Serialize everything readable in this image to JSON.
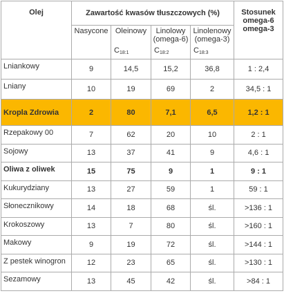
{
  "header": {
    "oil": "Olej",
    "group": "Zawartość kwasów tłuszczowych (%)",
    "ratio": [
      "Stosunek",
      "omega-6",
      "omega-3"
    ],
    "columns": [
      {
        "name": [
          "Nasycone"
        ]
      },
      {
        "name": [
          "Oleinowy"
        ],
        "formula": "C",
        "sub": "18:1"
      },
      {
        "name": [
          "Linolowy",
          "(omega-6)"
        ],
        "formula": "C",
        "sub": "18:2"
      },
      {
        "name": [
          "Linolenowy",
          "(omega-3)"
        ],
        "formula": "C",
        "sub": "18:3"
      }
    ]
  },
  "rows": [
    {
      "oil": "Lniankowy",
      "cells": [
        "9",
        "14,5",
        "15,2",
        "36,8",
        "1 : 2,4"
      ]
    },
    {
      "oil": "Lniany",
      "cells": [
        "10",
        "19",
        "69",
        "2",
        "34,5 : 1"
      ]
    },
    {
      "oil": "Kropla Zdrowia",
      "cells": [
        "2",
        "80",
        "7,1",
        "6,5",
        "1,2 : 1"
      ],
      "highlight": true,
      "bold": true
    },
    {
      "oil": "Rzepakowy 00",
      "cells": [
        "7",
        "62",
        "20",
        "10",
        "2 : 1"
      ]
    },
    {
      "oil": "Sojowy",
      "cells": [
        "13",
        "37",
        "41",
        "9",
        "4,6 : 1"
      ]
    },
    {
      "oil": "Oliwa z oliwek",
      "cells": [
        "15",
        "75",
        "9",
        "1",
        "9 : 1"
      ],
      "bold": true
    },
    {
      "oil": "Kukurydziany",
      "cells": [
        "13",
        "27",
        "59",
        "1",
        "59 : 1"
      ]
    },
    {
      "oil": "Słonecznikowy",
      "cells": [
        "14",
        "18",
        "68",
        "śl.",
        ">136 : 1"
      ]
    },
    {
      "oil": "Krokoszowy",
      "cells": [
        "13",
        "7",
        "80",
        "śl.",
        ">160 : 1"
      ]
    },
    {
      "oil": "Makowy",
      "cells": [
        "9",
        "19",
        "72",
        "śl.",
        ">144 : 1"
      ]
    },
    {
      "oil": "Z pestek winogron",
      "cells": [
        "12",
        "23",
        "65",
        "śl.",
        ">130 : 1"
      ]
    },
    {
      "oil": "Sezamowy",
      "cells": [
        "13",
        "45",
        "42",
        "śl.",
        ">84 : 1"
      ]
    }
  ]
}
